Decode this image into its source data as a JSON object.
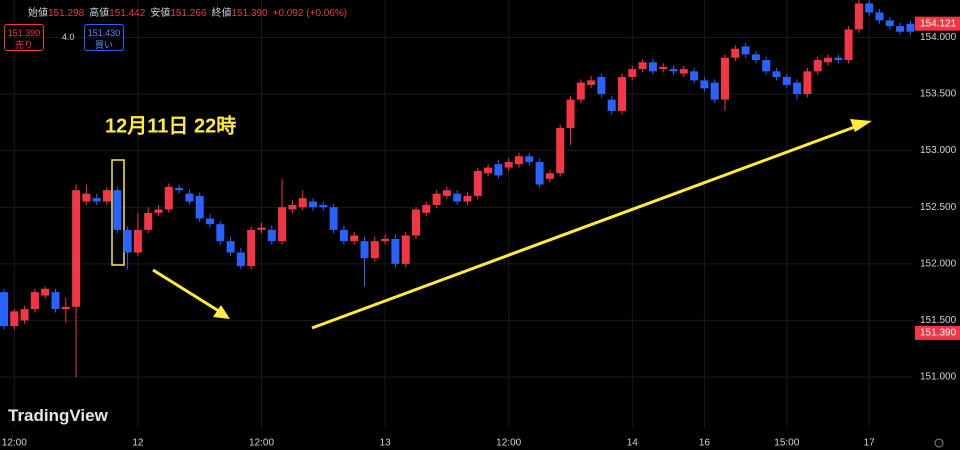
{
  "header": {
    "items": [
      {
        "label": "始値",
        "value": "151.298"
      },
      {
        "label": "高値",
        "value": "151.442"
      },
      {
        "label": "安値",
        "value": "151.266"
      },
      {
        "label": "終値",
        "value": "151.390"
      }
    ],
    "change": "+0.092 (+0.06%)",
    "sell_price": "151.390",
    "sell_label": "売り",
    "spread": "4.0",
    "buy_price": "151.430",
    "buy_label": "買い"
  },
  "logo": "TradingView",
  "chart_data": {
    "type": "candlestick",
    "annotation": "12月11日 22時",
    "up_color": "#f23645",
    "down_color": "#2962ff",
    "grid": true,
    "open": [
      151.75,
      151.45,
      151.5,
      151.6,
      151.72,
      151.75,
      151.6,
      151.62,
      152.55,
      152.58,
      152.55,
      152.65,
      152.3,
      152.1,
      152.3,
      152.45,
      152.48,
      152.67,
      152.62,
      152.6,
      152.4,
      152.35,
      152.2,
      152.1,
      151.98,
      152.3,
      152.3,
      152.2,
      152.48,
      152.5,
      152.55,
      152.52,
      152.5,
      152.3,
      152.2,
      152.2,
      152.05,
      152.2,
      152.22,
      152.0,
      152.25,
      152.45,
      152.52,
      152.6,
      152.62,
      152.55,
      152.6,
      152.8,
      152.88,
      152.85,
      152.88,
      152.95,
      152.9,
      152.75,
      152.8,
      153.2,
      153.45,
      153.58,
      153.65,
      153.45,
      153.35,
      153.65,
      153.72,
      153.78,
      153.72,
      153.72,
      153.68,
      153.7,
      153.62,
      153.6,
      153.45,
      153.82,
      153.92,
      153.85,
      153.8,
      153.7,
      153.65,
      153.6,
      153.5,
      153.7,
      153.78,
      153.82,
      153.8,
      154.07,
      154.3,
      154.22,
      154.15,
      154.1,
      154.12
    ],
    "high": [
      151.78,
      151.6,
      151.63,
      151.78,
      151.8,
      151.78,
      151.7,
      152.7,
      152.7,
      152.62,
      152.68,
      152.68,
      152.33,
      152.45,
      152.5,
      152.52,
      152.71,
      152.7,
      152.66,
      152.63,
      152.44,
      152.38,
      152.24,
      152.14,
      152.33,
      152.36,
      152.34,
      152.75,
      152.56,
      152.65,
      152.58,
      152.55,
      152.53,
      152.34,
      152.28,
      152.24,
      152.24,
      152.26,
      152.26,
      152.28,
      152.5,
      152.55,
      152.65,
      152.68,
      152.65,
      152.63,
      152.85,
      152.88,
      152.92,
      152.93,
      152.98,
      152.98,
      152.93,
      152.83,
      153.23,
      153.48,
      153.63,
      153.66,
      153.68,
      153.48,
      153.68,
      153.75,
      153.81,
      153.81,
      153.77,
      153.75,
      153.75,
      153.73,
      153.65,
      153.63,
      153.85,
      153.93,
      153.95,
      153.88,
      153.83,
      153.73,
      153.68,
      153.63,
      153.73,
      153.83,
      153.85,
      153.85,
      154.1,
      154.33,
      154.33,
      154.25,
      154.18,
      154.13,
      154.15
    ],
    "low": [
      151.42,
      151.42,
      151.47,
      151.57,
      151.69,
      151.57,
      151.48,
      151.0,
      152.52,
      152.52,
      152.52,
      152.27,
      151.95,
      152.07,
      152.27,
      152.42,
      152.45,
      152.62,
      152.52,
      152.37,
      152.32,
      152.17,
      152.07,
      151.95,
      151.95,
      152.27,
      152.17,
      152.17,
      152.45,
      152.47,
      152.47,
      152.47,
      152.27,
      152.17,
      152.17,
      151.8,
      152.02,
      152.17,
      151.97,
      151.97,
      152.22,
      152.42,
      152.49,
      152.57,
      152.52,
      152.52,
      152.57,
      152.77,
      152.75,
      152.82,
      152.85,
      152.87,
      152.67,
      152.72,
      152.77,
      153.05,
      153.42,
      153.55,
      153.47,
      153.32,
      153.32,
      153.62,
      153.69,
      153.67,
      153.69,
      153.67,
      153.65,
      153.59,
      153.52,
      153.42,
      153.35,
      153.79,
      153.82,
      153.77,
      153.67,
      153.62,
      153.55,
      153.45,
      153.47,
      153.67,
      153.75,
      153.77,
      153.77,
      154.04,
      154.19,
      154.12,
      154.07,
      154.02,
      154.02
    ],
    "close": [
      151.45,
      151.58,
      151.6,
      151.75,
      151.78,
      151.6,
      151.62,
      152.65,
      152.62,
      152.55,
      152.65,
      152.3,
      152.1,
      152.3,
      152.45,
      152.48,
      152.68,
      152.65,
      152.55,
      152.4,
      152.35,
      152.2,
      152.1,
      151.98,
      152.3,
      152.32,
      152.2,
      152.5,
      152.52,
      152.58,
      152.5,
      152.5,
      152.3,
      152.2,
      152.25,
      152.05,
      152.2,
      152.22,
      152.0,
      152.25,
      152.48,
      152.52,
      152.62,
      152.65,
      152.55,
      152.6,
      152.82,
      152.85,
      152.78,
      152.9,
      152.95,
      152.9,
      152.7,
      152.8,
      153.2,
      153.45,
      153.6,
      153.62,
      153.5,
      153.35,
      153.65,
      153.72,
      153.78,
      153.7,
      153.74,
      153.7,
      153.72,
      153.62,
      153.55,
      153.45,
      153.82,
      153.9,
      153.85,
      153.8,
      153.7,
      153.65,
      153.58,
      153.5,
      153.7,
      153.8,
      153.82,
      153.8,
      154.07,
      154.3,
      154.22,
      154.15,
      154.1,
      154.05,
      154.05
    ],
    "xticks": [
      {
        "value": 1,
        "label": "12:00"
      },
      {
        "value": 13,
        "label": "12"
      },
      {
        "value": 25,
        "label": "12:00"
      },
      {
        "value": 37,
        "label": "13"
      },
      {
        "value": 49,
        "label": "12:00"
      },
      {
        "value": 61,
        "label": "14"
      },
      {
        "value": 68,
        "label": "16"
      },
      {
        "value": 76,
        "label": "15:00"
      },
      {
        "value": 84,
        "label": "17"
      }
    ],
    "ylim": [
      150.55,
      154.33
    ],
    "yticks": [
      {
        "value": 151,
        "label": "151.000"
      },
      {
        "value": 151.5,
        "label": "151.500"
      },
      {
        "value": 152,
        "label": "152.000"
      },
      {
        "value": 152.5,
        "label": "152.500"
      },
      {
        "value": 153,
        "label": "153.000"
      },
      {
        "value": 153.5,
        "label": "153.500"
      },
      {
        "value": 154,
        "label": "154.000"
      }
    ],
    "price_labels": [
      {
        "value": 154.121,
        "label": "154.121"
      },
      {
        "value": 151.39,
        "label": "151.390"
      }
    ]
  }
}
